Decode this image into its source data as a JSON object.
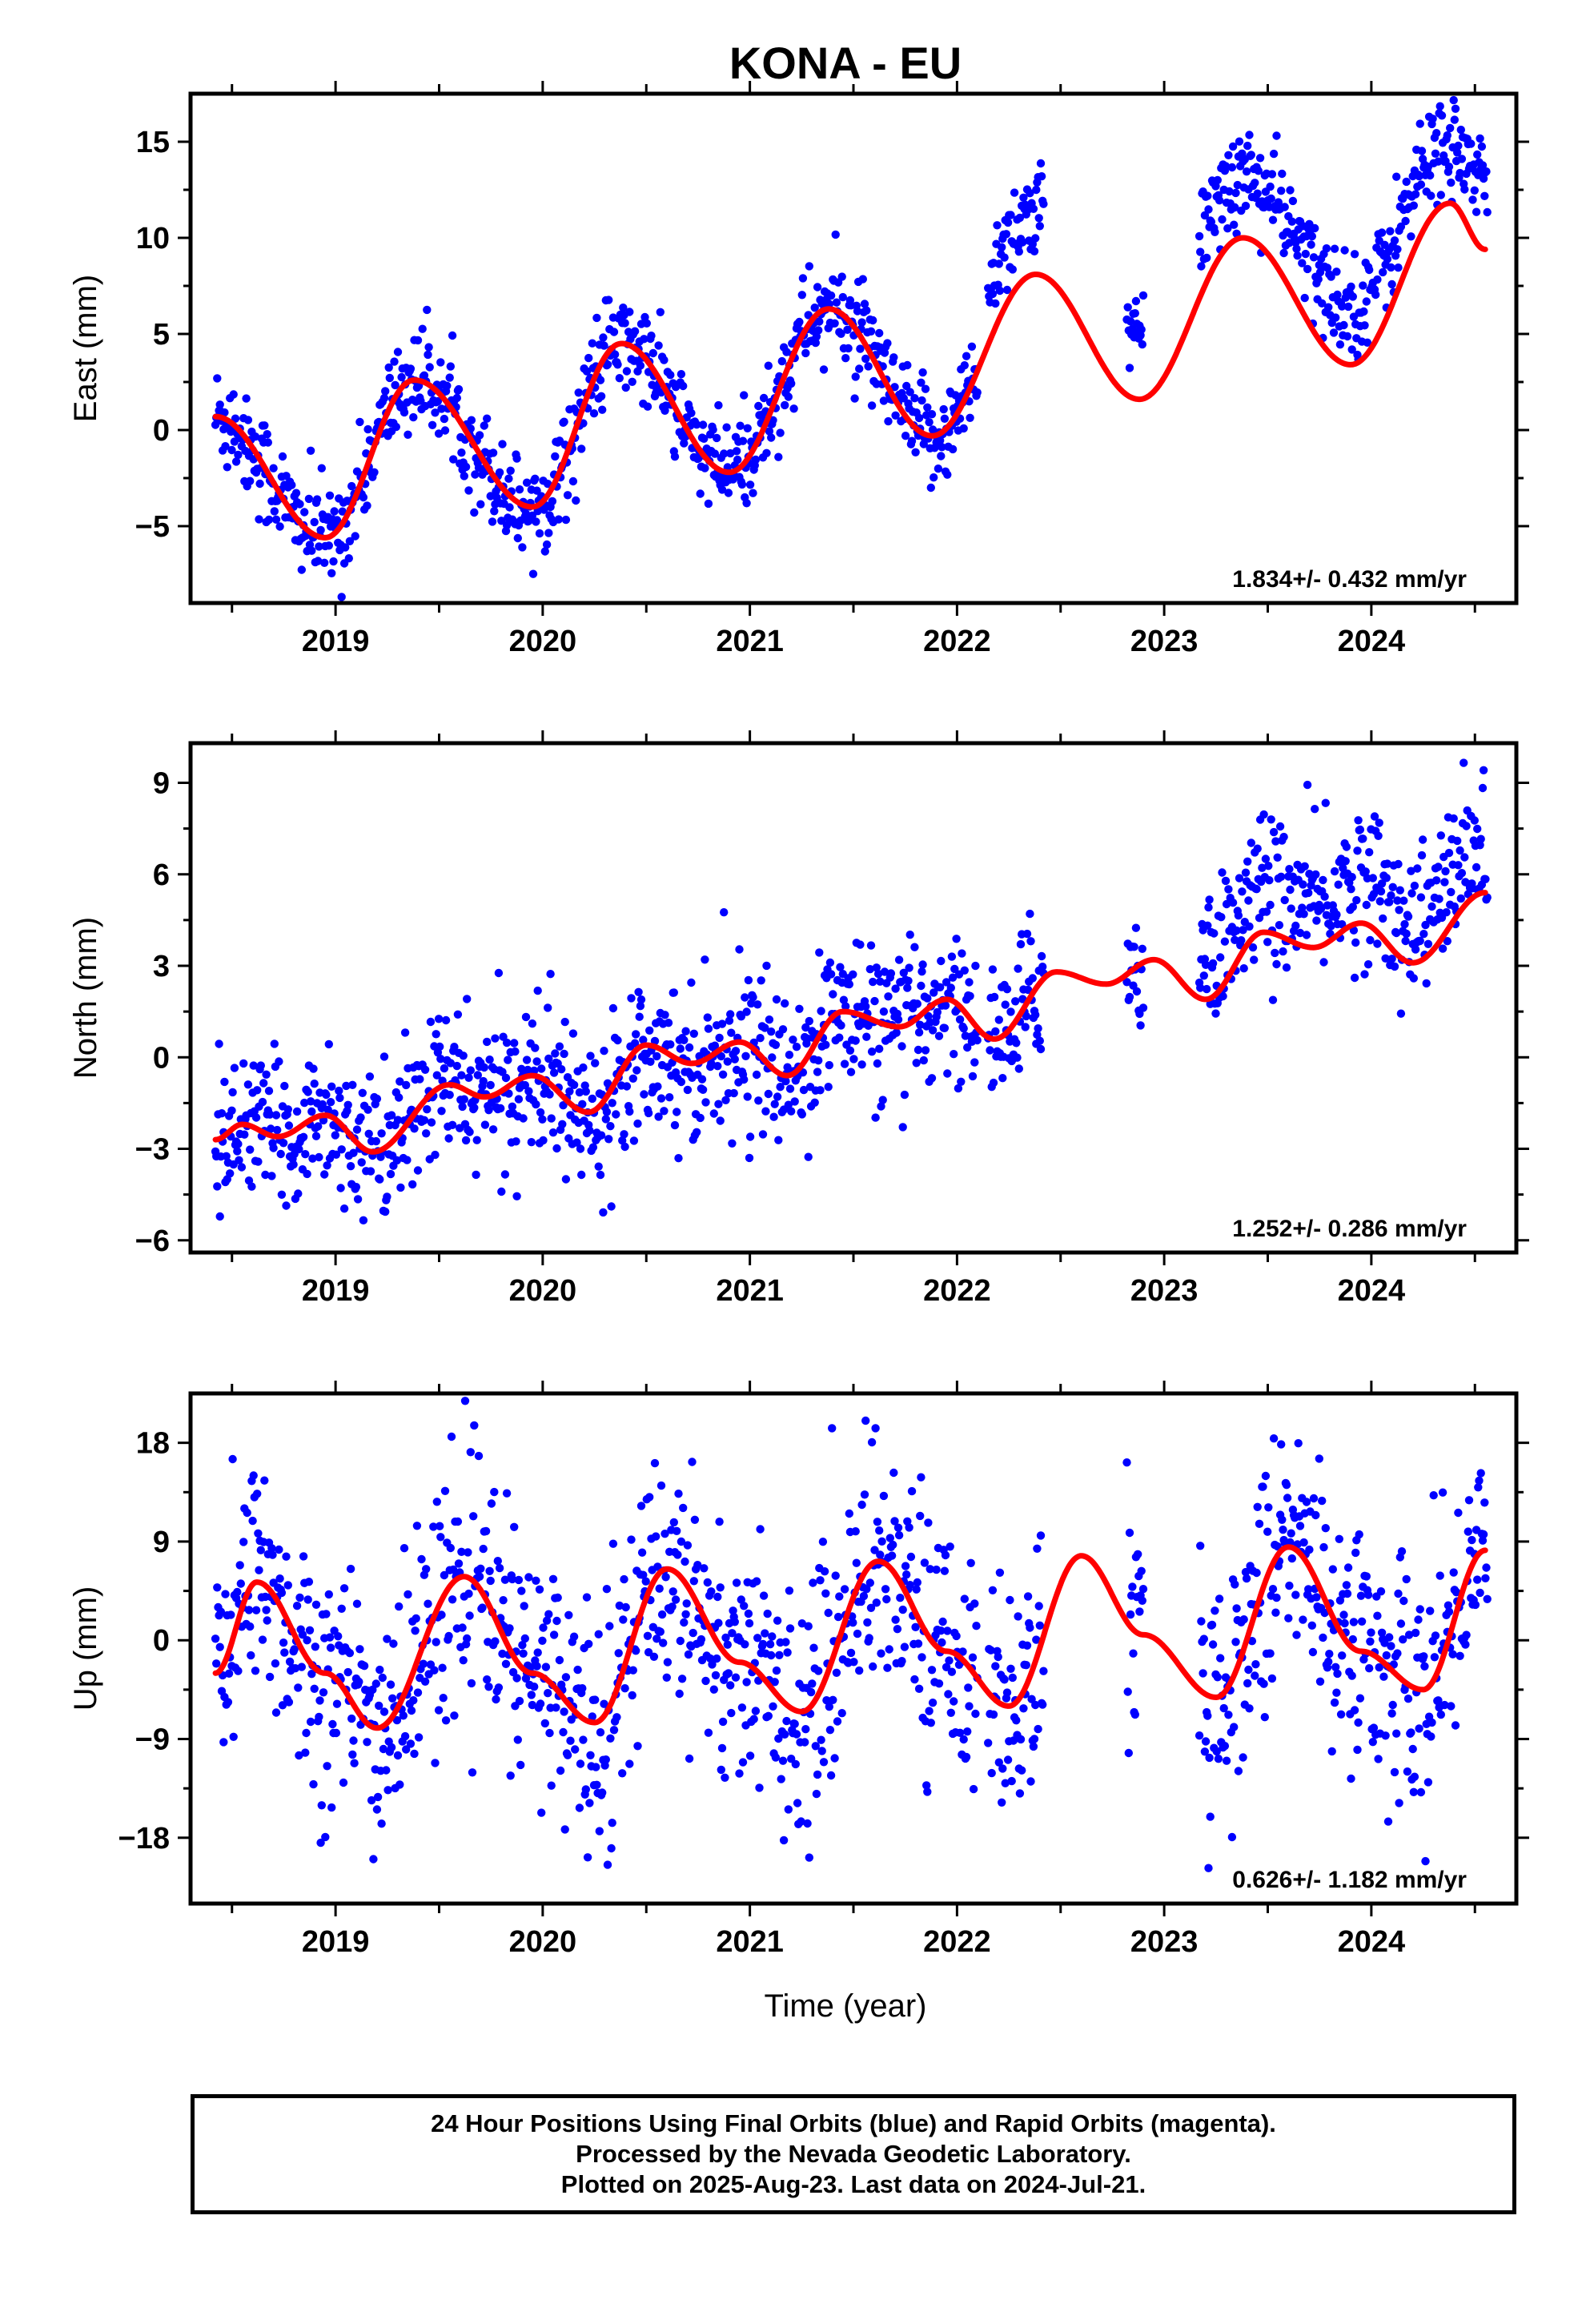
{
  "title": "KONA - EU",
  "footer": {
    "line1": "24 Hour Positions Using Final Orbits (blue) and Rapid Orbits (magenta).",
    "line2": "Processed by the Nevada Geodetic Laboratory.",
    "line3": "Plotted on 2025-Aug-23. Last data on 2024-Jul-21."
  },
  "colors": {
    "data": "#0000ff",
    "model": "#ff0000",
    "axis": "#000000"
  },
  "chart_data": [
    {
      "type": "scatter",
      "ylabel": "East (mm)",
      "xlabel": "",
      "xlim": [
        2018.3,
        2024.7
      ],
      "ylim": [
        -9.0,
        17.5
      ],
      "xticks": [
        2019,
        2020,
        2021,
        2022,
        2023,
        2024
      ],
      "yticks": [
        -5,
        0,
        5,
        10,
        15
      ],
      "ytick_labels": [
        "−5",
        "0",
        "5",
        "10",
        "15"
      ],
      "rate_label": "1.834+/- 0.432 mm/yr",
      "series": [
        {
          "role": "observations",
          "marker": "dot",
          "segments": [
            [
              2018.42,
              2022.1
            ],
            [
              2022.15,
              2022.42
            ],
            [
              2022.82,
              2022.9
            ],
            [
              2023.17,
              2024.56
            ]
          ],
          "values_note": ""
        },
        {
          "role": "model",
          "marker": "line"
        }
      ],
      "model": {
        "key_points": [
          [
            2018.42,
            0.7
          ],
          [
            2018.95,
            -5.6
          ],
          [
            2019.38,
            2.6
          ],
          [
            2019.95,
            -4.0
          ],
          [
            2020.38,
            4.5
          ],
          [
            2020.9,
            -2.2
          ],
          [
            2021.38,
            6.3
          ],
          [
            2021.88,
            -0.3
          ],
          [
            2022.38,
            8.1
          ],
          [
            2022.88,
            1.6
          ],
          [
            2023.38,
            10.0
          ],
          [
            2023.9,
            3.4
          ],
          [
            2024.38,
            11.8
          ],
          [
            2024.55,
            9.4
          ]
        ]
      },
      "trend": {
        "rate": 1.834,
        "offset_at_2018_42": -2.5,
        "amp": 4.4,
        "phase_peak": 2019.38
      },
      "noise": 1.3
    },
    {
      "type": "scatter",
      "ylabel": "North (mm)",
      "xlabel": "",
      "xlim": [
        2018.3,
        2024.7
      ],
      "ylim": [
        -6.4,
        10.3
      ],
      "xticks": [
        2019,
        2020,
        2021,
        2022,
        2023,
        2024
      ],
      "yticks": [
        -6,
        -3,
        0,
        3,
        6,
        9
      ],
      "ytick_labels": [
        "−6",
        "−3",
        "0",
        "3",
        "6",
        "9"
      ],
      "rate_label": "1.252+/- 0.286 mm/yr",
      "series": [
        {
          "role": "observations",
          "marker": "dot",
          "segments": [
            [
              2018.42,
              2022.1
            ],
            [
              2022.15,
              2022.42
            ],
            [
              2022.82,
              2022.9
            ],
            [
              2023.17,
              2024.56
            ]
          ]
        },
        {
          "role": "model",
          "marker": "line"
        }
      ],
      "model": {
        "key_points": [
          [
            2018.42,
            -2.7
          ],
          [
            2018.55,
            -2.2
          ],
          [
            2018.72,
            -2.6
          ],
          [
            2018.95,
            -1.9
          ],
          [
            2019.18,
            -3.1
          ],
          [
            2019.55,
            -0.9
          ],
          [
            2019.72,
            -1.3
          ],
          [
            2019.95,
            -0.6
          ],
          [
            2020.22,
            -1.8
          ],
          [
            2020.5,
            0.4
          ],
          [
            2020.72,
            -0.2
          ],
          [
            2020.95,
            0.5
          ],
          [
            2021.18,
            -0.6
          ],
          [
            2021.45,
            1.5
          ],
          [
            2021.72,
            1.0
          ],
          [
            2021.95,
            1.9
          ],
          [
            2022.18,
            0.6
          ],
          [
            2022.48,
            2.8
          ],
          [
            2022.72,
            2.4
          ],
          [
            2022.95,
            3.2
          ],
          [
            2023.2,
            1.9
          ],
          [
            2023.48,
            4.1
          ],
          [
            2023.72,
            3.6
          ],
          [
            2023.95,
            4.4
          ],
          [
            2024.2,
            3.1
          ],
          [
            2024.55,
            5.4
          ]
        ]
      },
      "noise": 1.2
    },
    {
      "type": "scatter",
      "ylabel": "Up (mm)",
      "xlabel": "Time (year)",
      "xlim": [
        2018.3,
        2024.7
      ],
      "ylim": [
        -24.0,
        22.5
      ],
      "xticks": [
        2019,
        2020,
        2021,
        2022,
        2023,
        2024
      ],
      "yticks": [
        -18,
        -9,
        0,
        9,
        18
      ],
      "ytick_labels": [
        "−18",
        "−9",
        "0",
        "9",
        "18"
      ],
      "rate_label": "0.626+/- 1.182 mm/yr",
      "series": [
        {
          "role": "observations",
          "marker": "dot",
          "segments": [
            [
              2018.42,
              2022.1
            ],
            [
              2022.15,
              2022.42
            ],
            [
              2022.82,
              2022.9
            ],
            [
              2023.17,
              2024.56
            ]
          ]
        },
        {
          "role": "model",
          "marker": "line"
        }
      ],
      "model": {
        "key_points": [
          [
            2018.42,
            -3.0
          ],
          [
            2018.62,
            5.3
          ],
          [
            2018.95,
            -3.0
          ],
          [
            2019.2,
            -8.0
          ],
          [
            2019.62,
            5.8
          ],
          [
            2019.95,
            -3.0
          ],
          [
            2020.25,
            -7.5
          ],
          [
            2020.6,
            6.5
          ],
          [
            2020.95,
            -2.0
          ],
          [
            2021.25,
            -6.5
          ],
          [
            2021.62,
            7.2
          ],
          [
            2021.95,
            -1.0
          ],
          [
            2022.25,
            -6.0
          ],
          [
            2022.6,
            7.7
          ],
          [
            2022.9,
            0.5
          ],
          [
            2023.25,
            -5.2
          ],
          [
            2023.6,
            8.5
          ],
          [
            2023.95,
            -1.0
          ],
          [
            2024.25,
            -4.5
          ],
          [
            2024.55,
            8.2
          ]
        ]
      },
      "noise": 5.5
    }
  ]
}
